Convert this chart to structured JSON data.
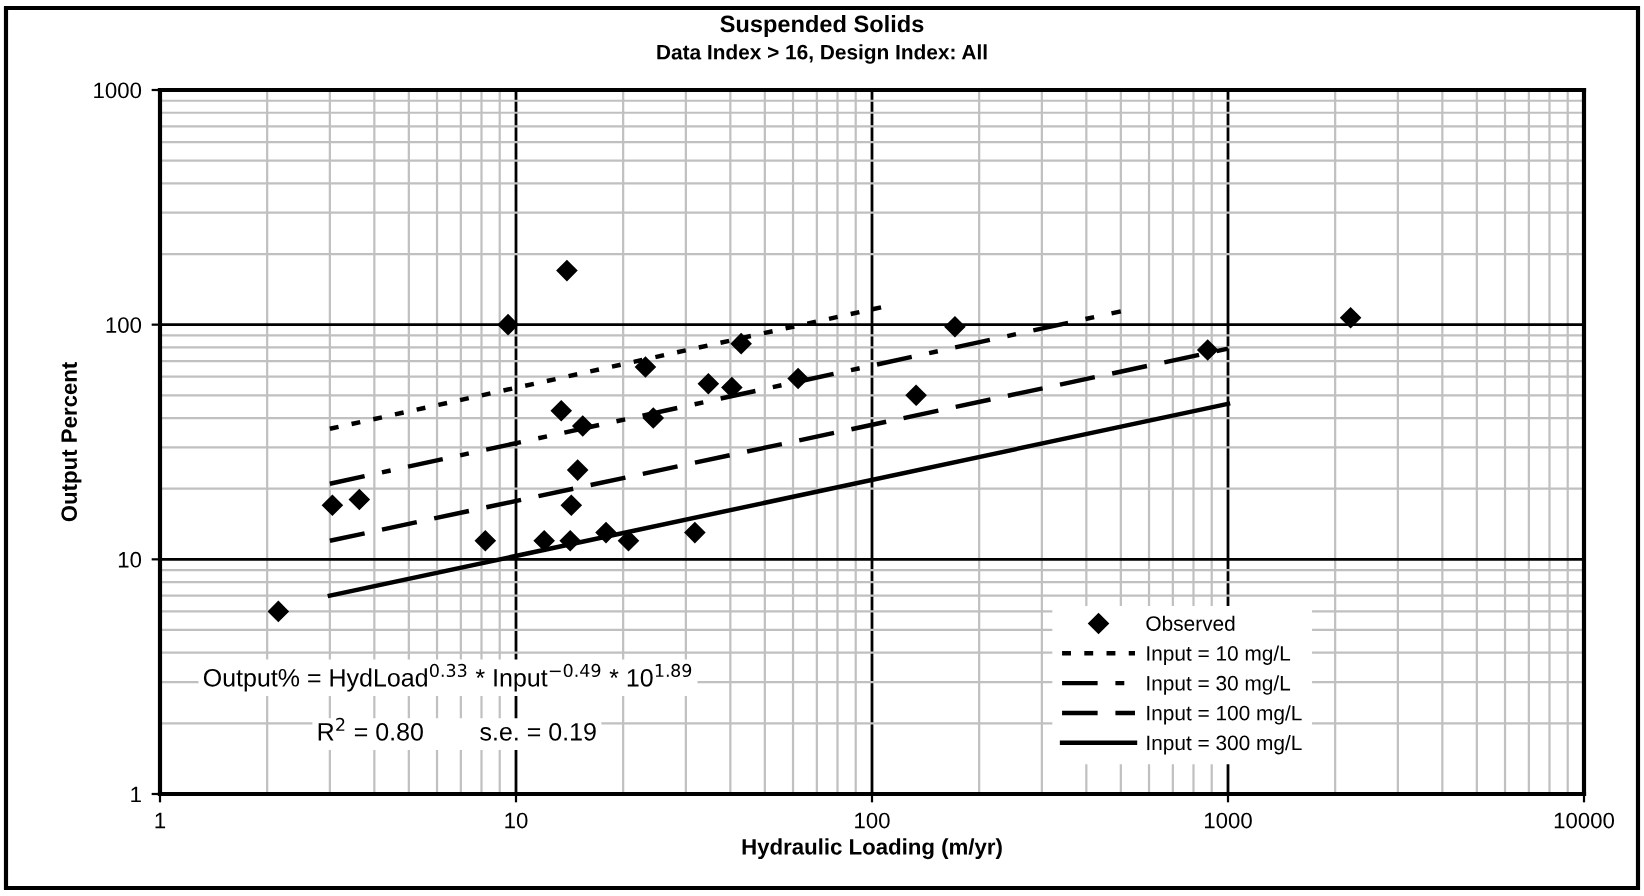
{
  "chart_data": {
    "type": "scatter",
    "title": "Suspended Solids",
    "subtitle": "Data Index > 16, Design Index: All",
    "xlabel": "Hydraulic Loading (m/yr)",
    "ylabel": "Output Percent",
    "log": "xy",
    "xlim": [
      1,
      10000
    ],
    "ylim": [
      1,
      1000
    ],
    "xticks": [
      1,
      10,
      100,
      1000,
      10000
    ],
    "yticks": [
      1,
      10,
      100,
      1000
    ],
    "grid": true,
    "legend": "bottom right",
    "series": [
      {
        "name": "Observed",
        "color": "#000000",
        "marker": "diamond",
        "x": [
          2.15,
          3.05,
          3.63,
          8.2,
          9.5,
          13.9,
          13.4,
          14.3,
          12.0,
          14.2,
          14.9,
          15.4,
          17.9,
          20.7,
          23.1,
          24.3,
          31.8,
          34.7,
          40.4,
          42.9,
          62,
          171,
          133,
          877,
          2210
        ],
        "values": [
          6,
          17,
          18,
          12,
          100,
          170,
          43,
          17,
          12,
          12,
          24,
          37,
          13,
          12,
          66,
          40,
          13,
          56,
          54,
          83,
          59,
          98,
          50,
          78,
          107
        ]
      },
      {
        "name": "Input = 10 mg/L",
        "type": "line",
        "color": "#000000",
        "line_style": "dotted",
        "marker": "none",
        "x": [
          3,
          110
        ],
        "values": [
          36,
          120
        ]
      },
      {
        "name": "Input = 30 mg/L",
        "type": "line",
        "color": "#000000",
        "line_style": "dashdot",
        "marker": "none",
        "x": [
          3,
          500
        ],
        "values": [
          21,
          114
        ]
      },
      {
        "name": "Input = 100 mg/L",
        "type": "line",
        "color": "#000000",
        "line_style": "dashed",
        "marker": "none",
        "x": [
          3,
          1000
        ],
        "values": [
          12,
          79
        ]
      },
      {
        "name": "Input = 300 mg/L",
        "type": "line",
        "color": "#000000",
        "line_style": "solid",
        "marker": "none",
        "x": [
          3,
          1000
        ],
        "values": [
          7,
          46
        ]
      }
    ],
    "annotations": [
      "Output% = HydLoad$^{0.33}$ * Input$^{−0.49}$ * 10$^{1.89}$",
      "R$^{2}$ = 0.80        s.e. = 0.19"
    ]
  }
}
